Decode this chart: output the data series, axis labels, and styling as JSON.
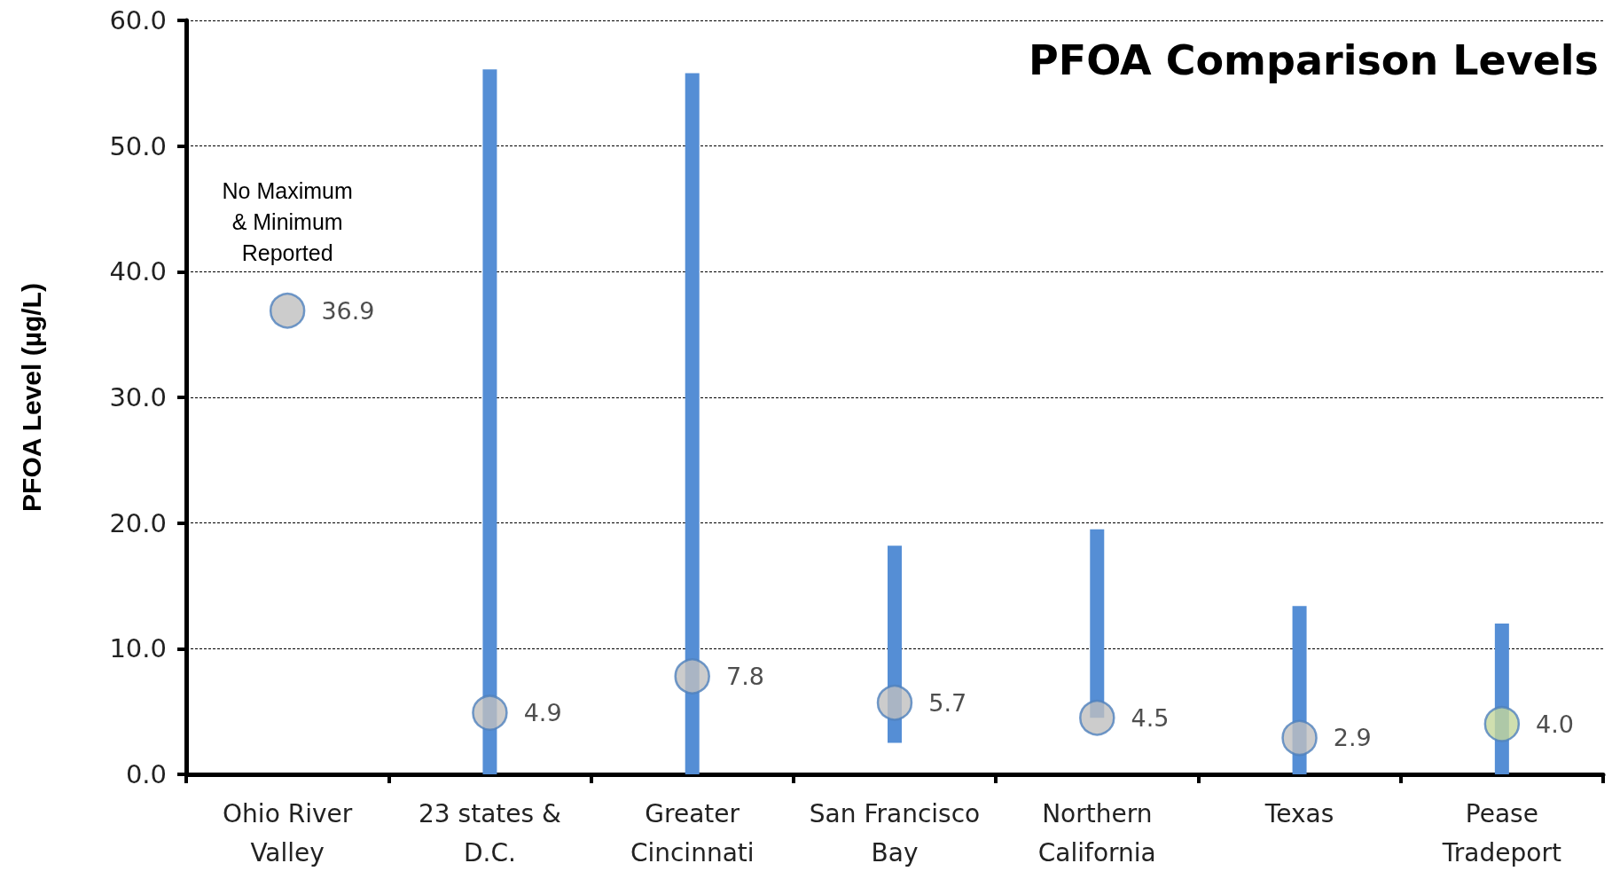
{
  "chart_data": {
    "type": "bar",
    "title": "PFOA Comparison Levels",
    "ylabel": "PFOA Level (µg/L)",
    "categories": [
      "Ohio River\nValley",
      "23 states &\nD.C.",
      "Greater\nCincinnati",
      "San Francisco\nBay",
      "Northern\nCalifornia",
      "Texas",
      "Pease\nTradeport"
    ],
    "series": [
      {
        "color": "#558ed5",
        "base": [
          null,
          0,
          0,
          2.5,
          4.5,
          0,
          0
        ],
        "values": [
          null,
          56.1,
          55.8,
          15.7,
          15.0,
          13.4,
          12.0
        ]
      },
      {
        "type": "scatter",
        "colors": [
          "#bfbfbf",
          "#bfbfbf",
          "#bfbfbf",
          "#bfbfbf",
          "#bfbfbf",
          "#bfbfbf",
          "#c4d79b"
        ],
        "values": [
          36.9,
          4.9,
          7.8,
          5.7,
          4.5,
          2.9,
          4.0
        ],
        "value_labels": [
          "36.9",
          "4.9",
          "7.8",
          "5.7",
          "4.5",
          "2.9",
          "4.0"
        ]
      }
    ],
    "ylim": [
      0,
      60
    ],
    "yticks": [
      {
        "value": 0,
        "label": "0.0"
      },
      {
        "value": 10,
        "label": "10.0"
      },
      {
        "value": 20,
        "label": "20.0"
      },
      {
        "value": 30,
        "label": "30.0"
      },
      {
        "value": 40,
        "label": "40.0"
      },
      {
        "value": 50,
        "label": "50.0"
      },
      {
        "value": 60,
        "label": "60.0"
      }
    ],
    "grid": "y",
    "marker": "circle",
    "annotations": [
      "No Maximum\n& Minimum\nReported"
    ]
  }
}
